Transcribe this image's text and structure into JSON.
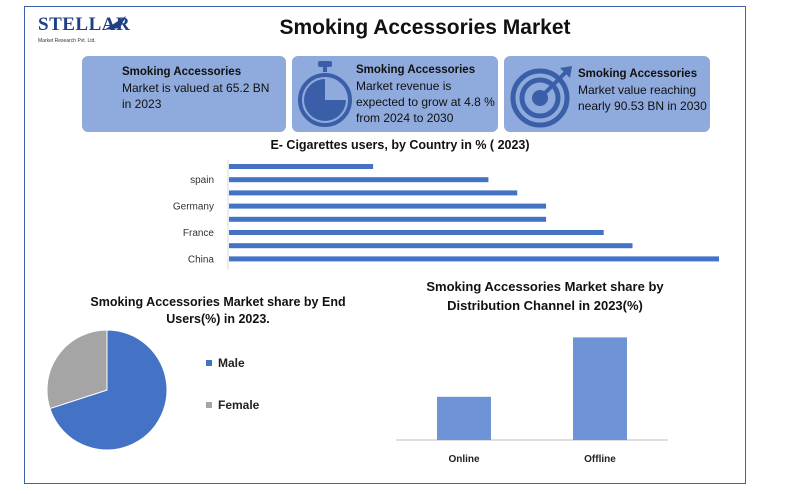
{
  "header": {
    "logo_text": "STELLAR",
    "logo_subtext": "Market Research Pvt. Ltd.",
    "title": "Smoking Accessories Market"
  },
  "cards": [
    {
      "heading": "Smoking Accessories",
      "body": "Market is valued at 65.2 BN in 2023"
    },
    {
      "heading": "Smoking Accessories",
      "body": "Market revenue is expected to grow at 4.8 % from 2024 to 2030",
      "icon": "stopwatch-icon"
    },
    {
      "heading": "Smoking Accessories",
      "body": "Market value reaching nearly 90.53 BN in 2030",
      "icon": "target-icon"
    }
  ],
  "colors": {
    "accent": "#4472c4",
    "card_bg": "#8faadc",
    "gray": "#a5a5a5",
    "bar_light": "#6e93d6"
  },
  "chart_data": [
    {
      "type": "bar",
      "orientation": "horizontal",
      "title": "E- Cigarettes users, by Country in % ( 2023)",
      "categories": [
        "China",
        "",
        "France",
        "",
        "Germany",
        "",
        "spain",
        ""
      ],
      "values": [
        17.0,
        14.0,
        13.0,
        11.0,
        11.0,
        10.0,
        9.0,
        5.0
      ],
      "xlim": [
        0,
        17
      ],
      "grid": false
    },
    {
      "type": "pie",
      "title": "Smoking Accessories Market share by End Users(%) in 2023.",
      "labels": [
        "Male",
        "Female"
      ],
      "values": [
        70,
        30
      ],
      "colors": [
        "#4472c4",
        "#a5a5a5"
      ],
      "legend": "right"
    },
    {
      "type": "bar",
      "title": "Smoking Accessories Market share by Distribution Channel  in 2023(%)",
      "categories": [
        "Online",
        "Offline"
      ],
      "values": [
        40,
        95
      ],
      "ylim": [
        0,
        100
      ],
      "grid": false
    }
  ]
}
